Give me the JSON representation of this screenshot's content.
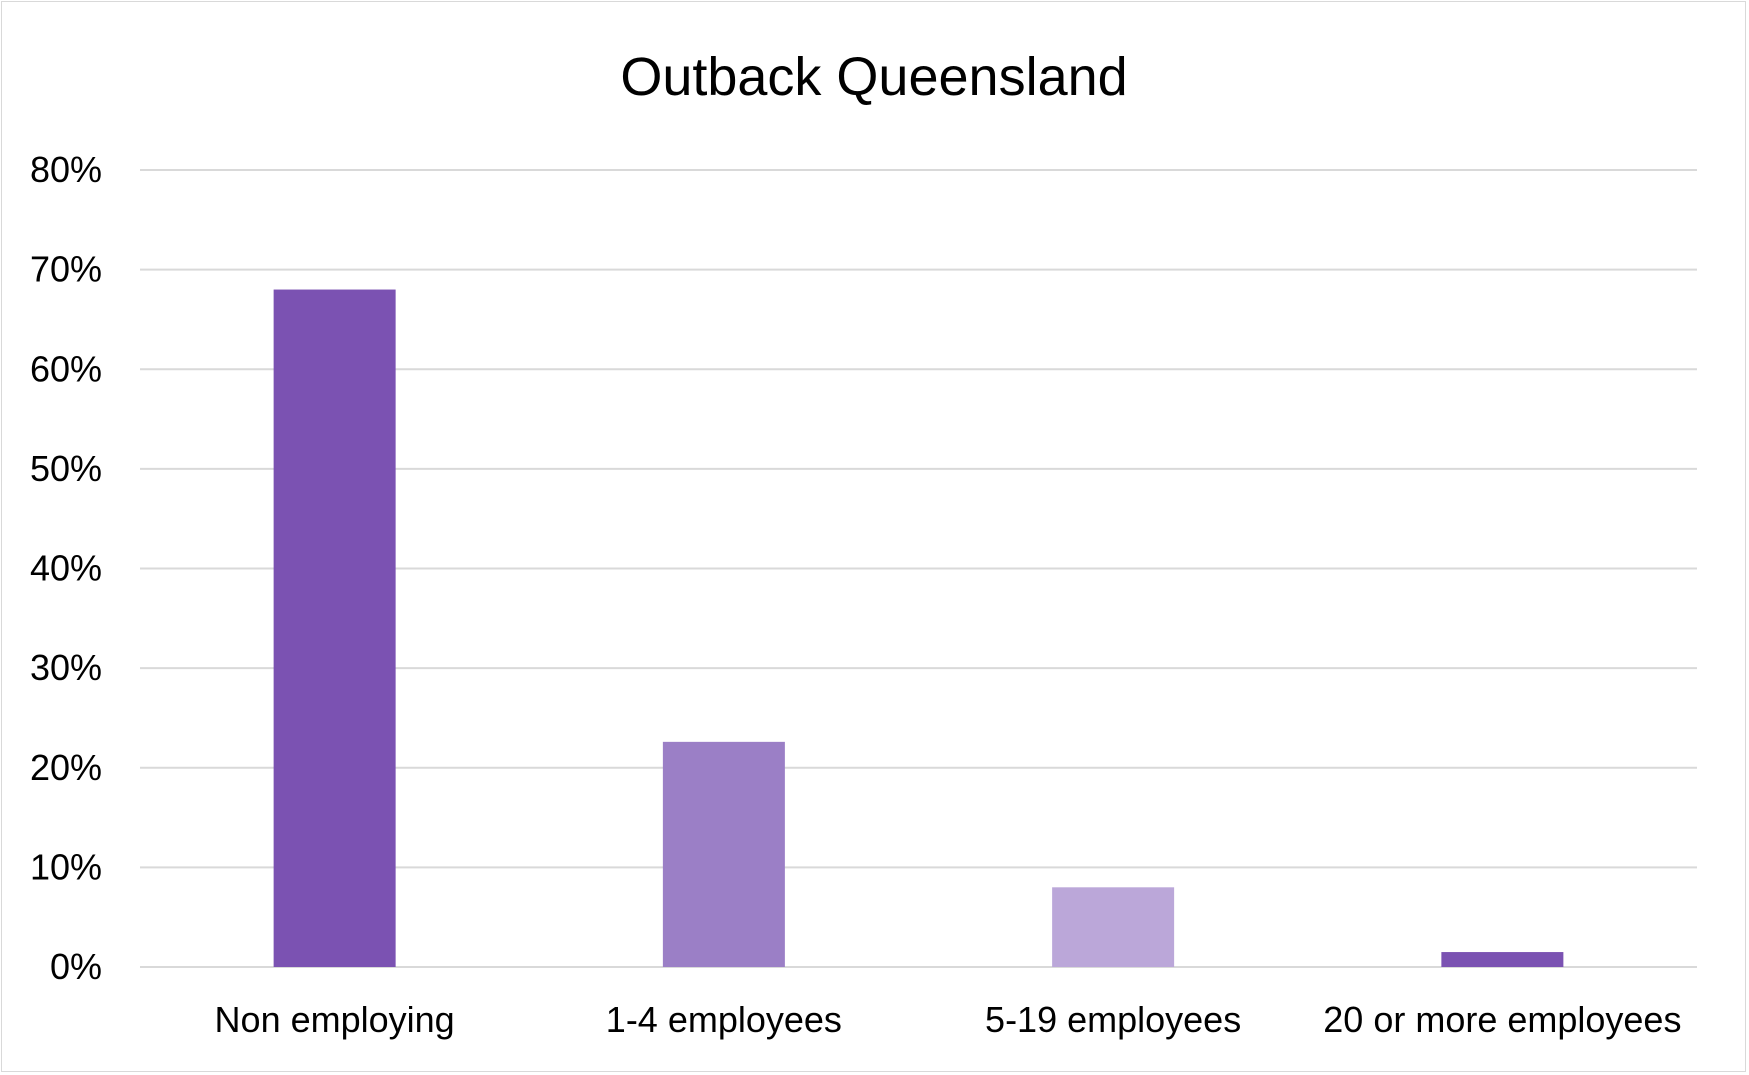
{
  "chart_data": {
    "type": "bar",
    "title": "Outback Queensland",
    "xlabel": "",
    "ylabel": "",
    "categories": [
      "Non employing",
      "1-4 employees",
      "5-19 employees",
      "20 or more employees"
    ],
    "values": [
      68,
      22.6,
      8,
      1.5
    ],
    "bar_colors": [
      "#7b52b2",
      "#9b7fc6",
      "#bba7d9",
      "#7b52b2"
    ],
    "ylim": [
      0,
      80
    ],
    "y_ticks": [
      0,
      10,
      20,
      30,
      40,
      50,
      60,
      70,
      80
    ],
    "y_tick_labels": [
      "0%",
      "10%",
      "20%",
      "30%",
      "40%",
      "50%",
      "60%",
      "70%",
      "80%"
    ],
    "grid": true,
    "legend": "none"
  }
}
